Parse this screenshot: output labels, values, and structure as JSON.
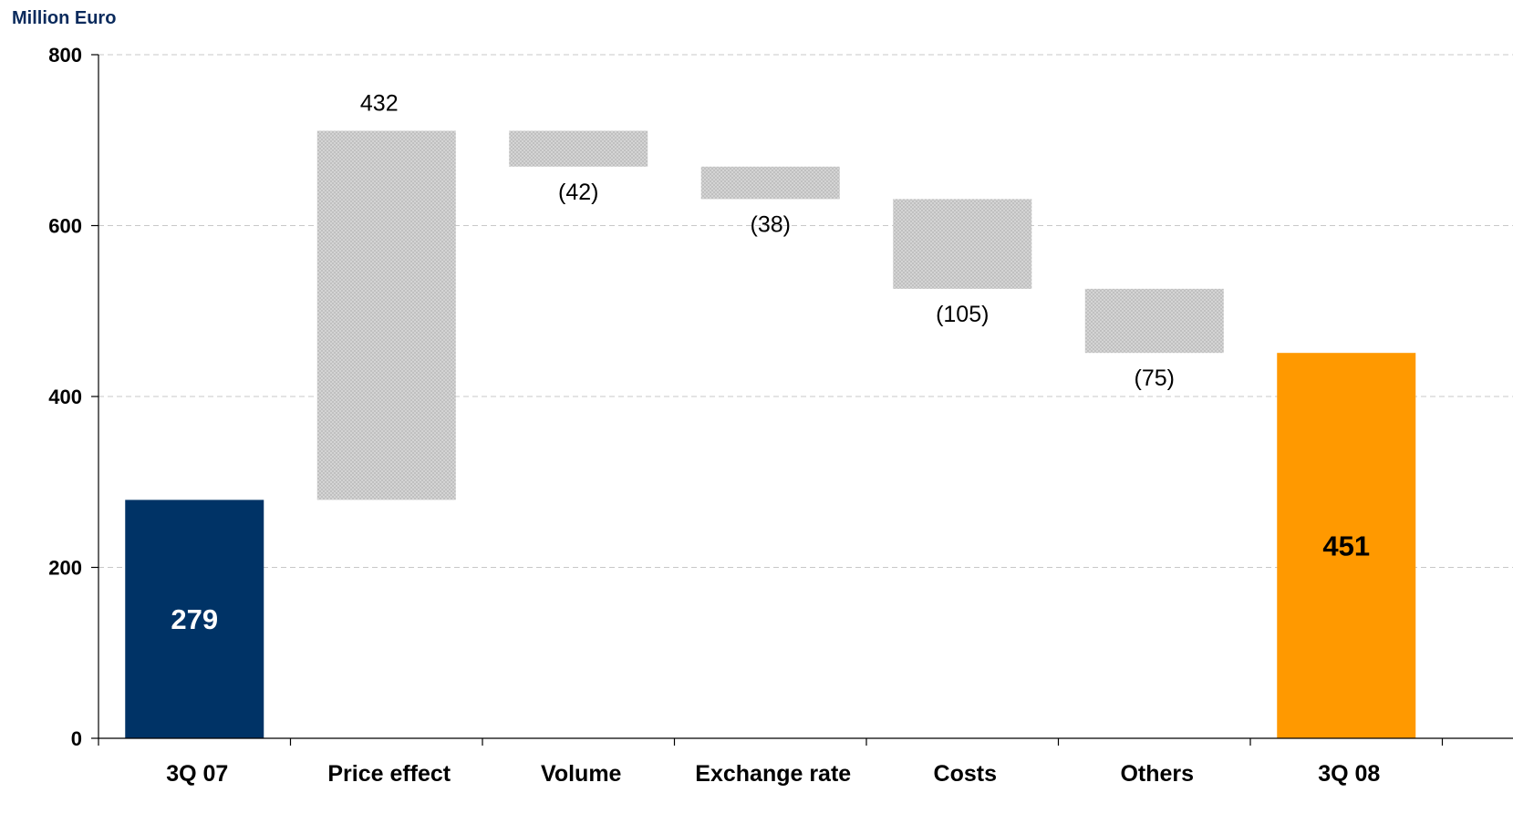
{
  "chart_data": {
    "type": "bar",
    "subtype": "waterfall",
    "unit_label": "Million Euro",
    "categories": [
      "3Q 07",
      "Price effect",
      "Volume",
      "Exchange rate",
      "Costs",
      "Others",
      "3Q 08"
    ],
    "values": [
      279,
      432,
      -42,
      -38,
      -105,
      -75,
      451
    ],
    "data_labels": [
      "279",
      "432",
      "(42)",
      "(38)",
      "(105)",
      "(75)",
      "451"
    ],
    "kinds": [
      "total",
      "delta",
      "delta",
      "delta",
      "delta",
      "delta",
      "total"
    ],
    "y_ticks": [
      0,
      200,
      400,
      600,
      800
    ],
    "ylim": [
      0,
      800
    ],
    "grid": true,
    "grid_style": "dashed",
    "colors": {
      "start_total": "#003366",
      "end_total": "#ff9900",
      "delta": "#c8c8c8",
      "unit_label": "#0a2a5c",
      "start_total_label": "#ffffff",
      "end_total_label": "#000000"
    }
  }
}
